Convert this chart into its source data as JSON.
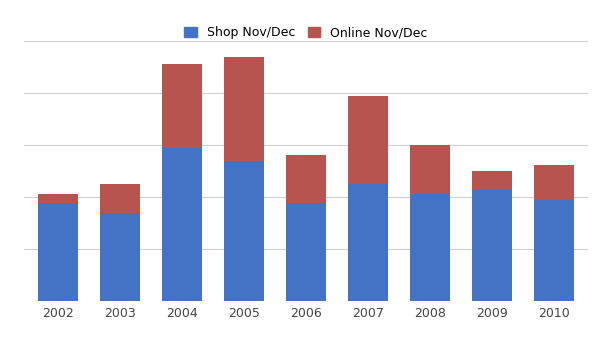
{
  "years": [
    "2002",
    "2003",
    "2004",
    "2005",
    "2006",
    "2007",
    "2008",
    "2009",
    "2010"
  ],
  "shop": [
    3.0,
    2.7,
    4.7,
    4.3,
    3.0,
    3.6,
    3.3,
    3.4,
    3.1
  ],
  "online": [
    0.3,
    0.9,
    2.6,
    3.2,
    1.5,
    2.7,
    1.5,
    0.6,
    1.1
  ],
  "shop_color": "#4472C4",
  "online_color": "#B85450",
  "legend_labels": [
    "Shop Nov/Dec",
    "Online Nov/Dec"
  ],
  "background_color": "#FFFFFF",
  "grid_color": "#D0D0D0",
  "ylim_max": 8.0,
  "bar_width": 0.65,
  "grid_lines": [
    1.6,
    3.2,
    4.8,
    6.4,
    8.0
  ],
  "xtick_fontsize": 9,
  "legend_fontsize": 9
}
